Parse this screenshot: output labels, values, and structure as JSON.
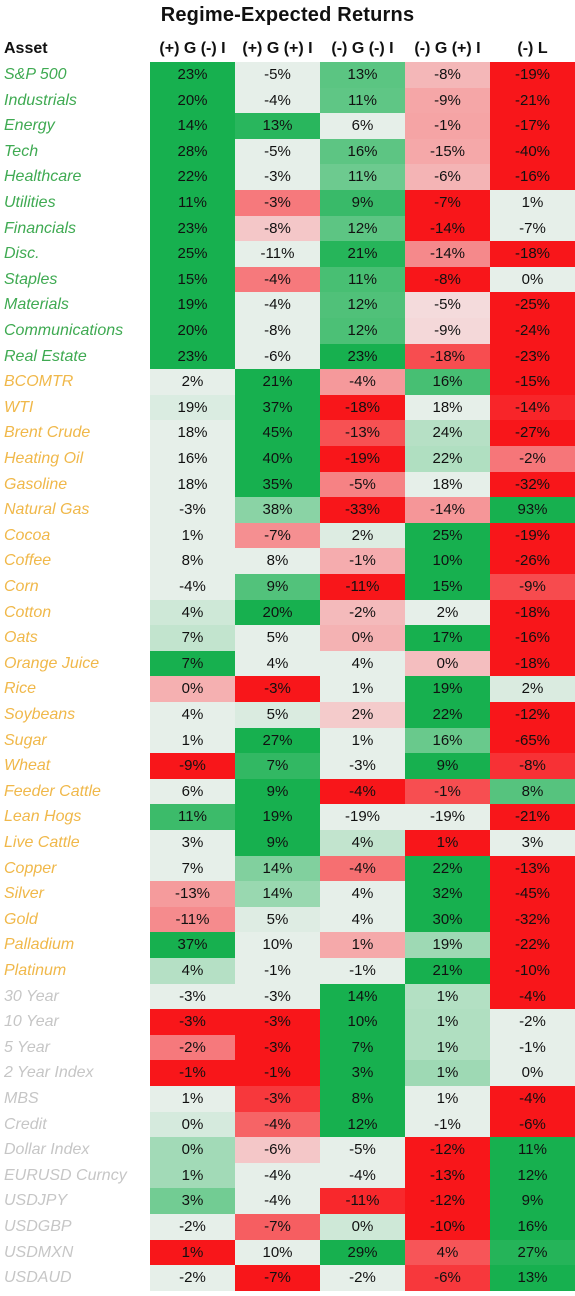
{
  "title": "Regime-Expected Returns",
  "header": {
    "asset": "Asset",
    "columns": [
      "(+) G (-) I",
      "(+) G (+) I",
      "(-) G (-) I",
      "(-) G (+) I",
      "(-) L"
    ]
  },
  "colors": {
    "equity_text": "#3faa52",
    "commodity_text": "#f0b84a",
    "fixed_income_text": "#c6c6c6",
    "positive_strong": "#17b04f",
    "neutral": "#f3f3f3",
    "negative_strong": "#f8161a"
  },
  "chart_data": {
    "type": "heatmap",
    "title": "Regime-Expected Returns",
    "columns": [
      "(+) G (-) I",
      "(+) G (+) I",
      "(-) G (-) I",
      "(-) G (+) I",
      "(-) L"
    ],
    "unit": "%",
    "rows": [
      {
        "asset": "S&P 500",
        "group": "equity",
        "values": [
          23,
          -5,
          13,
          -8,
          -19
        ]
      },
      {
        "asset": "Industrials",
        "group": "equity",
        "values": [
          20,
          -4,
          11,
          -9,
          -21
        ]
      },
      {
        "asset": "Energy",
        "group": "equity",
        "values": [
          14,
          13,
          6,
          -1,
          -17
        ]
      },
      {
        "asset": "Tech",
        "group": "equity",
        "values": [
          28,
          -5,
          16,
          -15,
          -40
        ]
      },
      {
        "asset": "Healthcare",
        "group": "equity",
        "values": [
          22,
          -3,
          11,
          -6,
          -16
        ]
      },
      {
        "asset": "Utilities",
        "group": "equity",
        "values": [
          11,
          -3,
          9,
          -7,
          1
        ]
      },
      {
        "asset": "Financials",
        "group": "equity",
        "values": [
          23,
          -8,
          12,
          -14,
          -7
        ]
      },
      {
        "asset": "Disc.",
        "group": "equity",
        "values": [
          25,
          -11,
          21,
          -14,
          -18
        ]
      },
      {
        "asset": "Staples",
        "group": "equity",
        "values": [
          15,
          -4,
          11,
          -8,
          0
        ]
      },
      {
        "asset": "Materials",
        "group": "equity",
        "values": [
          19,
          -4,
          12,
          -5,
          -25
        ]
      },
      {
        "asset": "Communications",
        "group": "equity",
        "values": [
          20,
          -8,
          12,
          -9,
          -24
        ]
      },
      {
        "asset": "Real Estate",
        "group": "equity",
        "values": [
          23,
          -6,
          23,
          -18,
          -23
        ]
      },
      {
        "asset": "BCOMTR",
        "group": "commodity",
        "values": [
          2,
          21,
          -4,
          16,
          -15
        ]
      },
      {
        "asset": "WTI",
        "group": "commodity",
        "values": [
          19,
          37,
          -18,
          18,
          -14
        ]
      },
      {
        "asset": "Brent Crude",
        "group": "commodity",
        "values": [
          18,
          45,
          -13,
          24,
          -27
        ]
      },
      {
        "asset": "Heating Oil",
        "group": "commodity",
        "values": [
          16,
          40,
          -19,
          22,
          -2
        ]
      },
      {
        "asset": "Gasoline",
        "group": "commodity",
        "values": [
          18,
          35,
          -5,
          18,
          -32
        ]
      },
      {
        "asset": "Natural Gas",
        "group": "commodity",
        "values": [
          -3,
          38,
          -33,
          -14,
          93
        ]
      },
      {
        "asset": "Cocoa",
        "group": "commodity",
        "values": [
          1,
          -7,
          2,
          25,
          -19
        ]
      },
      {
        "asset": "Coffee",
        "group": "commodity",
        "values": [
          8,
          8,
          -1,
          10,
          -26
        ]
      },
      {
        "asset": "Corn",
        "group": "commodity",
        "values": [
          -4,
          9,
          -11,
          15,
          -9
        ]
      },
      {
        "asset": "Cotton",
        "group": "commodity",
        "values": [
          4,
          20,
          -2,
          2,
          -18
        ]
      },
      {
        "asset": "Oats",
        "group": "commodity",
        "values": [
          7,
          5,
          0,
          17,
          -16
        ]
      },
      {
        "asset": "Orange Juice",
        "group": "commodity",
        "values": [
          7,
          4,
          4,
          0,
          -18
        ]
      },
      {
        "asset": "Rice",
        "group": "commodity",
        "values": [
          0,
          -3,
          1,
          19,
          2
        ]
      },
      {
        "asset": "Soybeans",
        "group": "commodity",
        "values": [
          4,
          5,
          2,
          22,
          -12
        ]
      },
      {
        "asset": "Sugar",
        "group": "commodity",
        "values": [
          1,
          27,
          1,
          16,
          -65
        ]
      },
      {
        "asset": "Wheat",
        "group": "commodity",
        "values": [
          -9,
          7,
          -3,
          9,
          -8
        ]
      },
      {
        "asset": "Feeder Cattle",
        "group": "commodity",
        "values": [
          6,
          9,
          -4,
          -1,
          8
        ]
      },
      {
        "asset": "Lean Hogs",
        "group": "commodity",
        "values": [
          11,
          19,
          -19,
          -19,
          -21
        ]
      },
      {
        "asset": "Live Cattle",
        "group": "commodity",
        "values": [
          3,
          9,
          4,
          1,
          3
        ]
      },
      {
        "asset": "Copper",
        "group": "commodity",
        "values": [
          7,
          14,
          -4,
          22,
          -13
        ]
      },
      {
        "asset": "Silver",
        "group": "commodity",
        "values": [
          -13,
          14,
          4,
          32,
          -45
        ]
      },
      {
        "asset": "Gold",
        "group": "commodity",
        "values": [
          -11,
          5,
          4,
          30,
          -32
        ]
      },
      {
        "asset": "Palladium",
        "group": "commodity",
        "values": [
          37,
          10,
          1,
          19,
          -22
        ]
      },
      {
        "asset": "Platinum",
        "group": "commodity",
        "values": [
          4,
          -1,
          -1,
          21,
          -10
        ]
      },
      {
        "asset": "30 Year",
        "group": "fixed_income",
        "values": [
          -3,
          -3,
          14,
          1,
          -4
        ]
      },
      {
        "asset": "10 Year",
        "group": "fixed_income",
        "values": [
          -3,
          -3,
          10,
          1,
          -2
        ]
      },
      {
        "asset": "5 Year",
        "group": "fixed_income",
        "values": [
          -2,
          -3,
          7,
          1,
          -1
        ]
      },
      {
        "asset": "2 Year Index",
        "group": "fixed_income",
        "values": [
          -1,
          -1,
          3,
          1,
          0
        ]
      },
      {
        "asset": "MBS",
        "group": "fixed_income",
        "values": [
          1,
          -3,
          8,
          1,
          -4
        ]
      },
      {
        "asset": "Credit",
        "group": "fixed_income",
        "values": [
          0,
          -4,
          12,
          -1,
          -6
        ]
      },
      {
        "asset": "Dollar Index",
        "group": "fixed_income",
        "values": [
          0,
          -6,
          -5,
          -12,
          11
        ]
      },
      {
        "asset": "EURUSD Curncy",
        "group": "fixed_income",
        "values": [
          1,
          -4,
          -4,
          -13,
          12
        ]
      },
      {
        "asset": "USDJPY",
        "group": "fixed_income",
        "values": [
          3,
          -4,
          -11,
          -12,
          9
        ]
      },
      {
        "asset": "USDGBP",
        "group": "fixed_income",
        "values": [
          -2,
          -7,
          0,
          -10,
          16
        ]
      },
      {
        "asset": "USDMXN",
        "group": "fixed_income",
        "values": [
          1,
          10,
          29,
          4,
          27
        ]
      },
      {
        "asset": "USDAUD",
        "group": "fixed_income",
        "values": [
          -2,
          -7,
          -2,
          -6,
          13
        ]
      }
    ]
  }
}
